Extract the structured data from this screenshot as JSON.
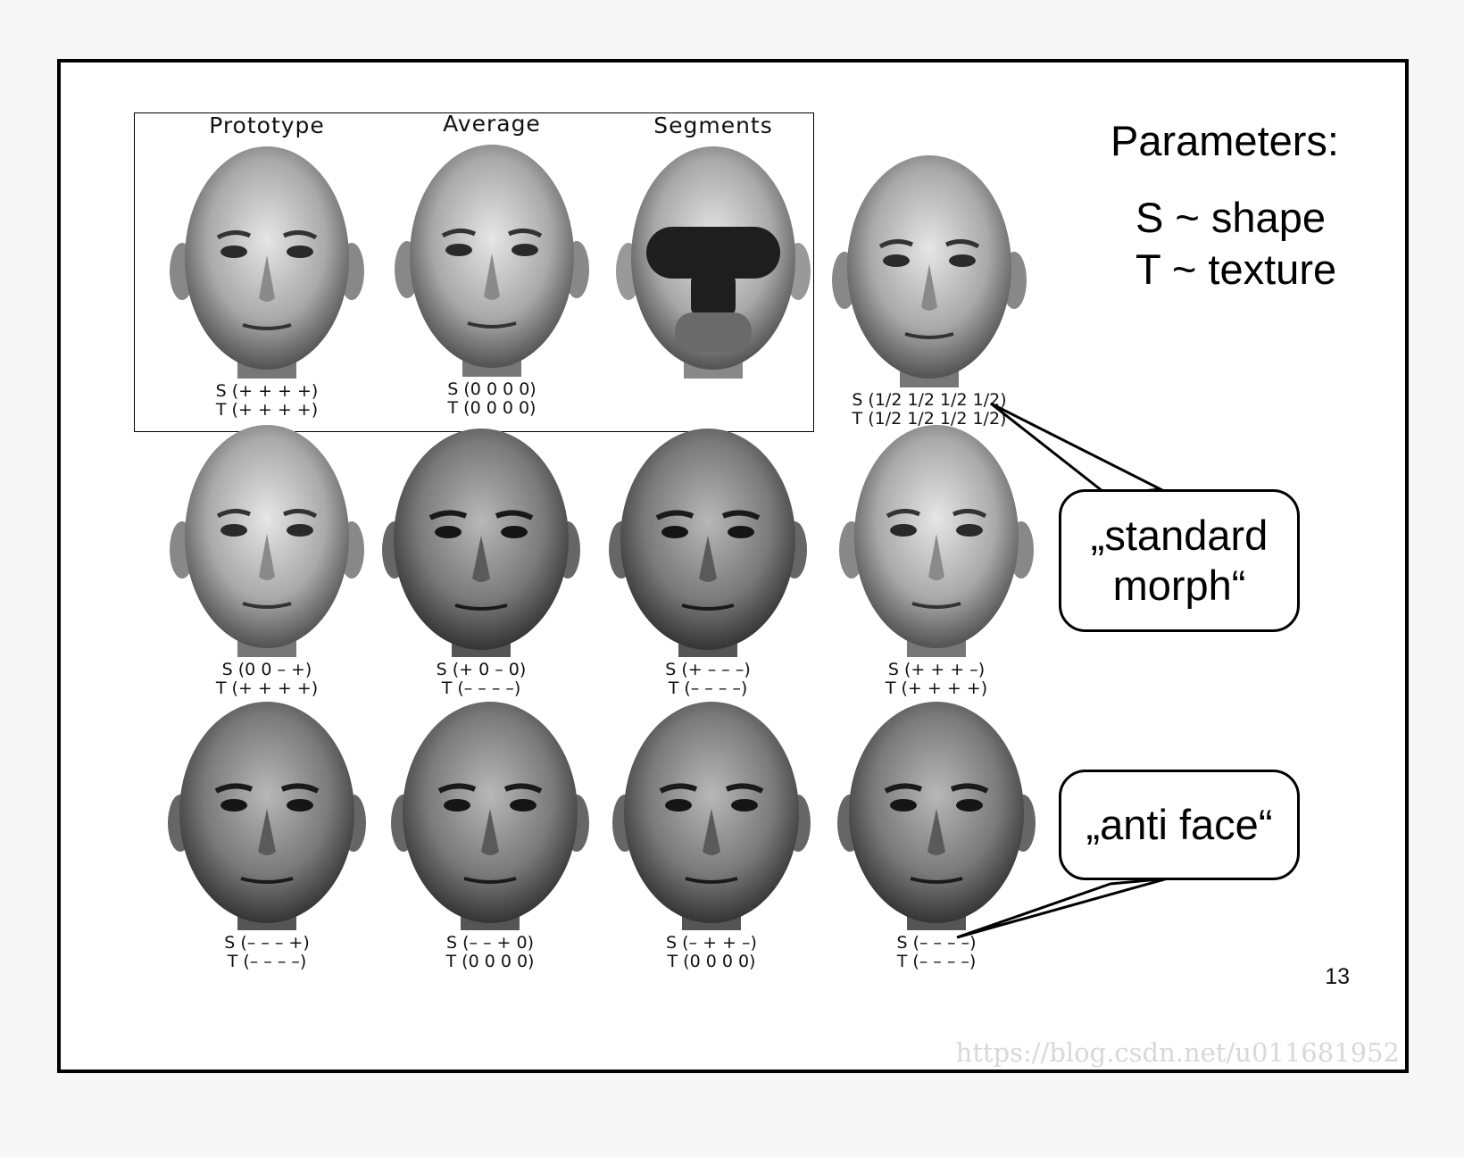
{
  "top_titles": {
    "prototype": "Prototype",
    "average": "Average",
    "segments": "Segments"
  },
  "faces": {
    "prototype": {
      "s": "S (+ + + +)",
      "t": "T (+ + + +)"
    },
    "average": {
      "s": "S (0 0 0 0)",
      "t": "T (0 0 0 0)"
    },
    "standard_morph": {
      "s": "S (1/2 1/2 1/2 1/2)",
      "t": "T (1/2 1/2 1/2 1/2)"
    },
    "r2c1": {
      "s": "S (0 0 – +)",
      "t": "T (+ + + +)"
    },
    "r2c2": {
      "s": "S (+ 0 – 0)",
      "t": "T (– – – –)"
    },
    "r2c3": {
      "s": "S (+ – – –)",
      "t": "T (– – – –)"
    },
    "r2c4": {
      "s": "S (+ + + –)",
      "t": "T (+ + + +)"
    },
    "r3c1": {
      "s": "S (– – – +)",
      "t": "T (– – – –)"
    },
    "r3c2": {
      "s": "S (– – + 0)",
      "t": "T (0 0 0 0)"
    },
    "r3c3": {
      "s": "S (– + + –)",
      "t": "T (0 0 0 0)"
    },
    "r3c4": {
      "s": "S (– – – –)",
      "t": "T (– – – –)"
    }
  },
  "parameters": {
    "heading": "Parameters:",
    "shape": "S ~ shape",
    "texture": "T ~ texture"
  },
  "callouts": {
    "standard_line1": "„standard",
    "standard_line2": "morph“",
    "anti": "„anti face“"
  },
  "page_number": "13",
  "watermark": "https://blog.csdn.net/u011681952"
}
